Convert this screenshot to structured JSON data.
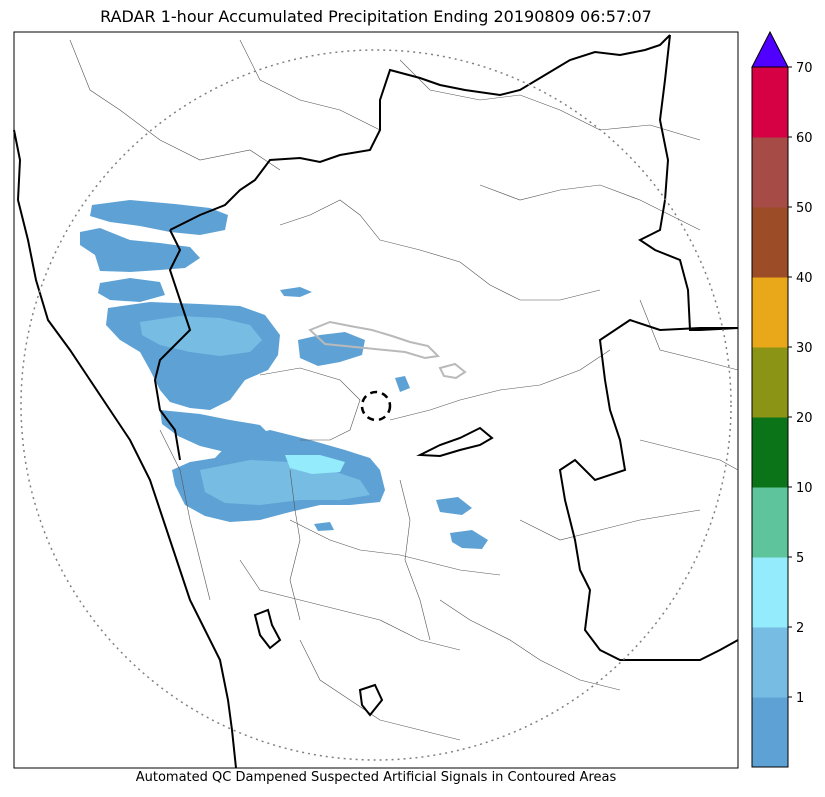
{
  "title": "RADAR 1-hour Accumulated Precipitation Ending 20190809 06:57:07",
  "caption": "Automated QC Dampened Suspected Artificial Signals in Contoured Areas",
  "colorbar": {
    "levels": [
      {
        "color": "#5ea2d5"
      },
      {
        "color": "#77bde3",
        "label": "1"
      },
      {
        "color": "#93ebfb",
        "label": "2"
      },
      {
        "color": "#5ec49b",
        "label": "5"
      },
      {
        "color": "#0c7418",
        "label": "10"
      },
      {
        "color": "#8c9416",
        "label": "20"
      },
      {
        "color": "#e8a81a",
        "label": "30"
      },
      {
        "color": "#9c4c27",
        "label": "40"
      },
      {
        "color": "#a64b45",
        "label": "50"
      },
      {
        "color": "#d60045",
        "label": "60"
      }
    ],
    "top_label": "70",
    "overflow_color": "#5000ff"
  },
  "colors": {
    "rain_light": "#5ea2d5",
    "rain_mid": "#77bde3",
    "rain_heavy": "#93ebfb",
    "qc_contour": "#b9b9b9",
    "state_border": "#000000",
    "district_border": "#555555",
    "range_ring": "#808080"
  }
}
